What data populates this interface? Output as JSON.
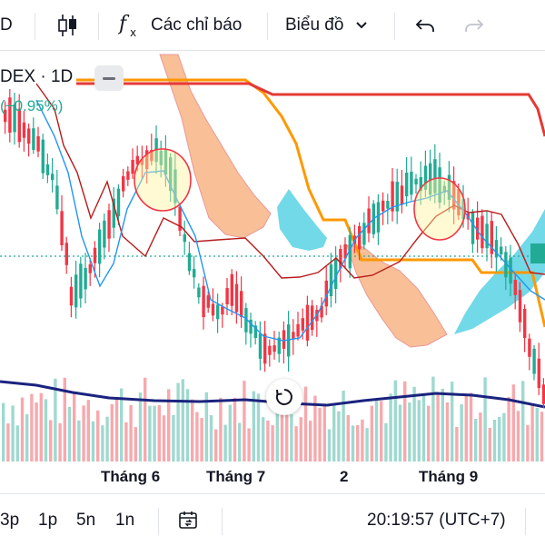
{
  "toolbar": {
    "symbol_fragment": "D",
    "indicators_label": "Các chỉ báo",
    "chart_type_label": "Biểu đồ"
  },
  "legend": {
    "title": "DEX · 1D",
    "change": "(+0.95%)"
  },
  "x_axis_labels": [
    "Tháng 6",
    "Tháng 7",
    "2",
    "Tháng 9"
  ],
  "bottom": {
    "ranges": [
      "3p",
      "1p",
      "5n",
      "1n"
    ],
    "clock": "20:19:57 (UTC+7)"
  },
  "colors": {
    "up": "#22ab94",
    "down": "#f23645",
    "cloud_bull": "#4dd0e1",
    "cloud_bear": "#f7a974",
    "kijun": "#b71c1c",
    "tenkan": "#2196f3",
    "orange_line": "#ff9800",
    "red_line": "#e53935",
    "volume_ma": "#1a237e",
    "accent": "#22ab94"
  },
  "icons": [
    "candles-icon",
    "function-icon",
    "chevron-down-icon",
    "undo-icon",
    "redo-icon",
    "reset-view-icon",
    "date-range-icon",
    "collapse-icon"
  ],
  "chart_data": {
    "type": "candlestick",
    "x_axis_ticks": [
      "Tháng 6",
      "Tháng 7",
      "2",
      "Tháng 9"
    ],
    "overlays": [
      "ichimoku-cloud",
      "kijun-line",
      "tenkan-line",
      "volume",
      "volume-ma"
    ],
    "annotations": [
      "circle-near-jun-high",
      "circle-near-sep-high"
    ],
    "change_percent": "+0.95%"
  }
}
